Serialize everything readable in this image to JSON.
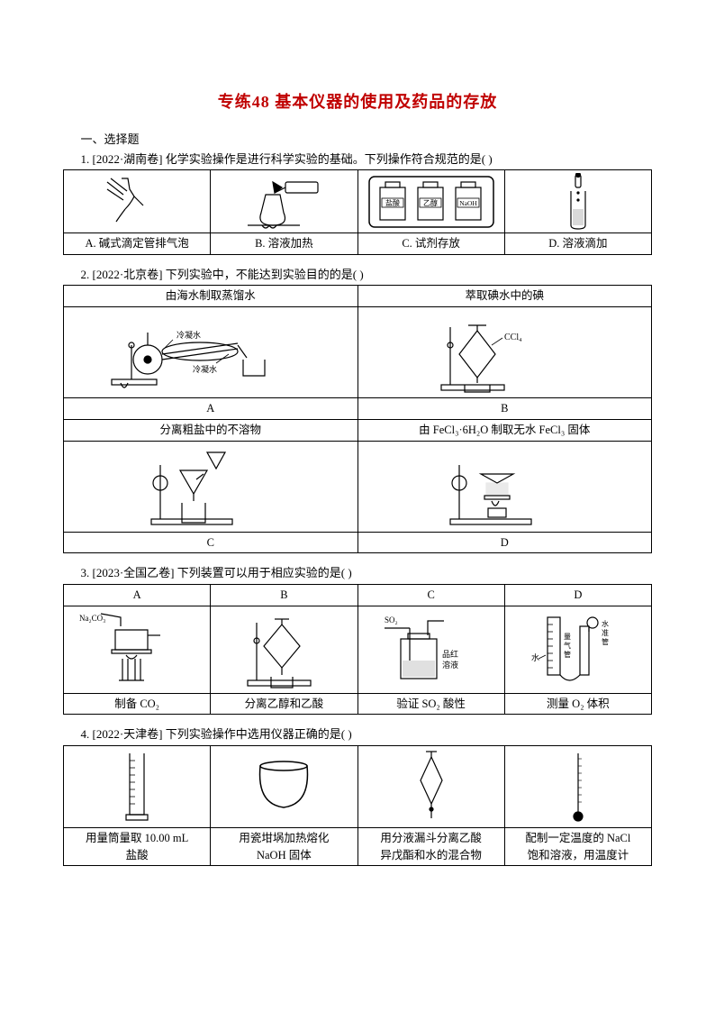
{
  "title": "专练48  基本仪器的使用及药品的存放",
  "section1": "一、选择题",
  "q1": {
    "stem": "1. [2022·湖南卷] 化学实验操作是进行科学实验的基础。下列操作符合规范的是(    )",
    "A": "A. 碱式滴定管排气泡",
    "B": "B. 溶液加热",
    "C": "C. 试剂存放",
    "D": "D. 溶液滴加",
    "c_labels": {
      "a": "盐酸",
      "b": "乙醇",
      "c": "NaOH"
    }
  },
  "q2": {
    "stem": "2. [2022·北京卷] 下列实验中，不能达到实验目的的是(    )",
    "hA": "由海水制取蒸馏水",
    "hB": "萃取碘水中的碘",
    "hC": "分离粗盐中的不溶物",
    "hD": "由 FeCl₃·6H₂O 制取无水 FeCl₃ 固体",
    "lA": "A",
    "lB": "B",
    "lC": "C",
    "lD": "D",
    "a_labels": {
      "cond_top": "冷凝水",
      "cond_bot": "冷凝水"
    },
    "b_labels": {
      "ccl4": "CCl₄"
    }
  },
  "q3": {
    "stem": "3. [2023·全国乙卷] 下列装置可以用于相应实验的是(    )",
    "hA": "A",
    "hB": "B",
    "hC": "C",
    "hD": "D",
    "rA": "制备 CO₂",
    "rB": "分离乙醇和乙酸",
    "rC": "验证 SO₂ 酸性",
    "rD": "测量 O₂ 体积",
    "a_labels": {
      "na2co3": "Na₂CO₃"
    },
    "c_labels": {
      "so2": "SO₂",
      "ph": "品红\n溶液"
    },
    "d_labels": {
      "gas": "量气管",
      "level": "水准管",
      "water": "水"
    }
  },
  "q4": {
    "stem": "4. [2022·天津卷] 下列实验操作中选用仪器正确的是(    )",
    "A": "用量筒量取 10.00 mL\n盐酸",
    "B": "用瓷坩埚加热熔化\nNaOH 固体",
    "C": "用分液漏斗分离乙酸\n异戊酯和水的混合物",
    "D": "配制一定温度的 NaCl\n饱和溶液，用温度计"
  },
  "colors": {
    "title": "#c00000",
    "text": "#000000",
    "border": "#000000",
    "bg": "#ffffff"
  }
}
